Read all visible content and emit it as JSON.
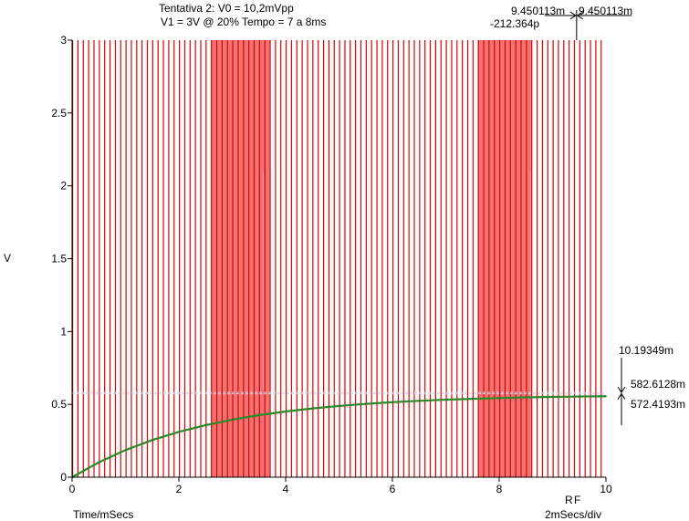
{
  "chart_data": {
    "type": "line",
    "title": [
      "Tentativa 2: V0 = 10,2mVpp",
      "V1 = 3V @ 20% Tempo = 7 a 8ms"
    ],
    "xlabel": "Time/mSecs",
    "ylabel": "V",
    "xlim": [
      0,
      10
    ],
    "ylim": [
      0,
      3
    ],
    "x_ticks": [
      "0",
      "2",
      "4",
      "6",
      "8",
      "10"
    ],
    "y_ticks": [
      "0",
      "0.5",
      "1",
      "1.5",
      "2",
      "2.5",
      "3"
    ],
    "x_scale_label": "2mSecs/div",
    "grid": false,
    "series": [
      {
        "role": "pwm",
        "color": "#e00000",
        "period_ms": 0.1,
        "duty": 0.2,
        "amplitude_v": 3,
        "dense_pulse_windows_ms": [
          [
            2.6,
            3.7
          ],
          [
            7.6,
            8.6
          ]
        ],
        "spikes": [
          {
            "x": 3.58,
            "y": 2.1
          },
          {
            "x": 8.58,
            "y": 2.1
          }
        ]
      },
      {
        "role": "rc-output",
        "color": "#2a8a2a",
        "x": [
          0,
          0.5,
          1,
          1.5,
          2,
          2.5,
          3,
          3.5,
          4,
          4.5,
          5,
          5.5,
          6,
          6.5,
          7,
          7.5,
          8,
          8.5,
          9,
          9.5,
          10
        ],
        "y": [
          0.0,
          0.102,
          0.186,
          0.255,
          0.311,
          0.357,
          0.395,
          0.426,
          0.451,
          0.472,
          0.489,
          0.503,
          0.515,
          0.524,
          0.532,
          0.538,
          0.543,
          0.548,
          0.551,
          0.554,
          0.556
        ]
      }
    ],
    "cursors": {
      "vertical": {
        "x": 9.45,
        "labels": [
          "9.450113m",
          "9.450113m"
        ],
        "delta_label": "-212.364p",
        "color": "#ffffff"
      },
      "horizontal": [
        {
          "y": 0.5826,
          "label": "582.6128m"
        },
        {
          "y": 0.5724,
          "label": "572.4193m"
        }
      ],
      "delta_y_label": "10.19349m",
      "cursor_tags": [
        "R",
        "F"
      ],
      "color": "#c8d8e8"
    }
  }
}
